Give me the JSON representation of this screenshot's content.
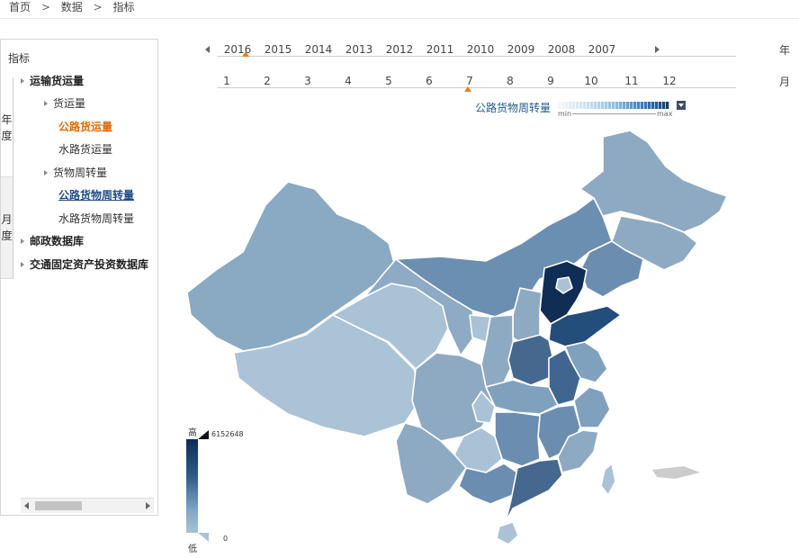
{
  "breadcrumb": {
    "home": "首页",
    "data": "数据",
    "indicator": "指标",
    "sep": ">"
  },
  "sidebar": {
    "title": "指标",
    "tab_year": "年度",
    "tab_month": "月度",
    "items": [
      {
        "label": "运输货运量"
      },
      {
        "label": "货运量"
      },
      {
        "label": "公路货运量"
      },
      {
        "label": "水路货运量"
      },
      {
        "label": "货物周转量"
      },
      {
        "label": "公路货物周转量"
      },
      {
        "label": "水路货物周转量"
      },
      {
        "label": "邮政数据库"
      },
      {
        "label": "交通固定资产投资数据库"
      }
    ]
  },
  "timeline": {
    "years": [
      "2016",
      "2015",
      "2014",
      "2013",
      "2012",
      "2011",
      "2010",
      "2009",
      "2008",
      "2007"
    ],
    "year_unit": "年",
    "selected_year": "2016",
    "months": [
      "1",
      "2",
      "3",
      "4",
      "5",
      "6",
      "7",
      "8",
      "9",
      "10",
      "11",
      "12"
    ],
    "month_unit": "月",
    "selected_month": "7"
  },
  "metric": {
    "title": "公路货物周转量",
    "ramp_min": "min",
    "ramp_max": "max"
  },
  "scale": {
    "high_label": "高",
    "low_label": "低",
    "max_value": "6152648",
    "min_value": "0"
  },
  "colors": {
    "accent_orange": "#e26a00",
    "link_blue": "#1f4f87",
    "map_dark": "#0f2d55",
    "map_light": "#a9c4d8"
  }
}
